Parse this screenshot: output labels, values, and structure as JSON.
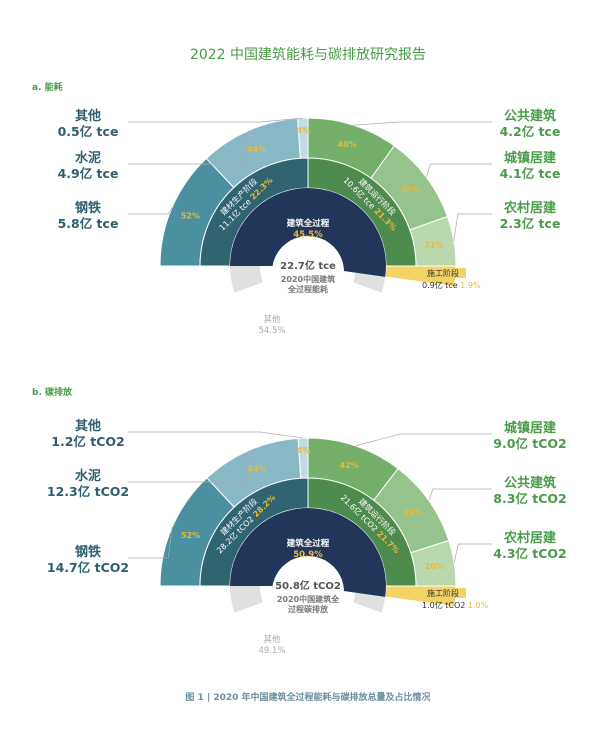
{
  "title": "2022 中国建筑能耗与碳排放研究报告",
  "caption": "图 1 | 2020 年中国建筑全过程能耗与碳排放总量及占比情况",
  "colors": {
    "steel": "#4a90a0",
    "cement": "#87b8c4",
    "other_material": "#c1dbe2",
    "material_stage": "#2f6470",
    "public": "#74b06a",
    "urban": "#95c38b",
    "rural": "#b9d8b0",
    "operation_stage": "#4e8c4e",
    "construction": "#f3d266",
    "total": "#22355b",
    "other": "#e0e0e0",
    "blue_text": "#2e5e70",
    "green_text": "#4a9b48",
    "yellow_text": "#e8b93b"
  },
  "chart_data": [
    {
      "type": "sunburst",
      "section_label": "a. 能耗",
      "center_value": "22.7亿 tce",
      "center_caption_1": "2020中国建筑",
      "center_caption_2": "全过程能耗",
      "total": {
        "name": "建筑全过程",
        "percent": "45.5%",
        "share": 45.5
      },
      "other": {
        "name": "其他",
        "percent": "54.5%",
        "share": 54.5
      },
      "stages": [
        {
          "key": "material",
          "name": "建材生产阶段",
          "value_text": "11.1亿 tce",
          "percent": "22.3%",
          "share": 22.3,
          "children": [
            {
              "key": "steel",
              "name": "钢铁",
              "value_text": "5.8亿 tce",
              "percent": "52%",
              "value": 5.8
            },
            {
              "key": "cement",
              "name": "水泥",
              "value_text": "4.9亿 tce",
              "percent": "44%",
              "value": 4.9
            },
            {
              "key": "other_material",
              "name": "其他",
              "value_text": "0.5亿 tce",
              "percent": "4%",
              "value": 0.5
            }
          ]
        },
        {
          "key": "operation",
          "name": "建筑运行阶段",
          "value_text": "10.6亿 tce",
          "percent": "21.3%",
          "share": 21.3,
          "children": [
            {
              "key": "public",
              "name": "公共建筑",
              "value_text": "4.2亿 tce",
              "percent": "40%",
              "value": 4.2
            },
            {
              "key": "urban",
              "name": "城镇居建",
              "value_text": "4.1亿 tce",
              "percent": "39%",
              "value": 4.1
            },
            {
              "key": "rural",
              "name": "农村居建",
              "value_text": "2.3亿 tce",
              "percent": "21%",
              "value": 2.3
            }
          ]
        },
        {
          "key": "construction",
          "name": "施工阶段",
          "value_text": "0.9亿 tce",
          "percent": "1.9%",
          "share": 1.9
        }
      ]
    },
    {
      "type": "sunburst",
      "section_label": "b. 碳排放",
      "center_value": "50.8亿 tCO2",
      "center_caption_1": "2020中国建筑全",
      "center_caption_2": "过程碳排放",
      "total": {
        "name": "建筑全过程",
        "percent": "50.9%",
        "share": 50.9
      },
      "other": {
        "name": "其他",
        "percent": "49.1%",
        "share": 49.1
      },
      "stages": [
        {
          "key": "material",
          "name": "建材生产阶段",
          "value_text": "28.2亿 tCO2",
          "percent": "28.2%",
          "share": 28.2,
          "children": [
            {
              "key": "steel",
              "name": "钢铁",
              "value_text": "14.7亿 tCO2",
              "percent": "52%",
              "value": 14.7
            },
            {
              "key": "cement",
              "name": "水泥",
              "value_text": "12.3亿 tCO2",
              "percent": "44%",
              "value": 12.3
            },
            {
              "key": "other_material",
              "name": "其他",
              "value_text": "1.2亿 tCO2",
              "percent": "4%",
              "value": 1.2
            }
          ]
        },
        {
          "key": "operation",
          "name": "建筑运行阶段",
          "value_text": "21.6亿 tCO2",
          "percent": "21.7%",
          "share": 21.7,
          "children": [
            {
              "key": "urban",
              "name": "城镇居建",
              "value_text": "9.0亿 tCO2",
              "percent": "42%",
              "value": 9.0
            },
            {
              "key": "public",
              "name": "公共建筑",
              "value_text": "8.3亿 tCO2",
              "percent": "38%",
              "value": 8.3
            },
            {
              "key": "rural",
              "name": "农村居建",
              "value_text": "4.3亿 tCO2",
              "percent": "20%",
              "value": 4.3
            }
          ]
        },
        {
          "key": "construction",
          "name": "施工阶段",
          "value_text": "1.0亿 tCO2",
          "percent": "1.0%",
          "share": 1.0
        }
      ]
    }
  ]
}
